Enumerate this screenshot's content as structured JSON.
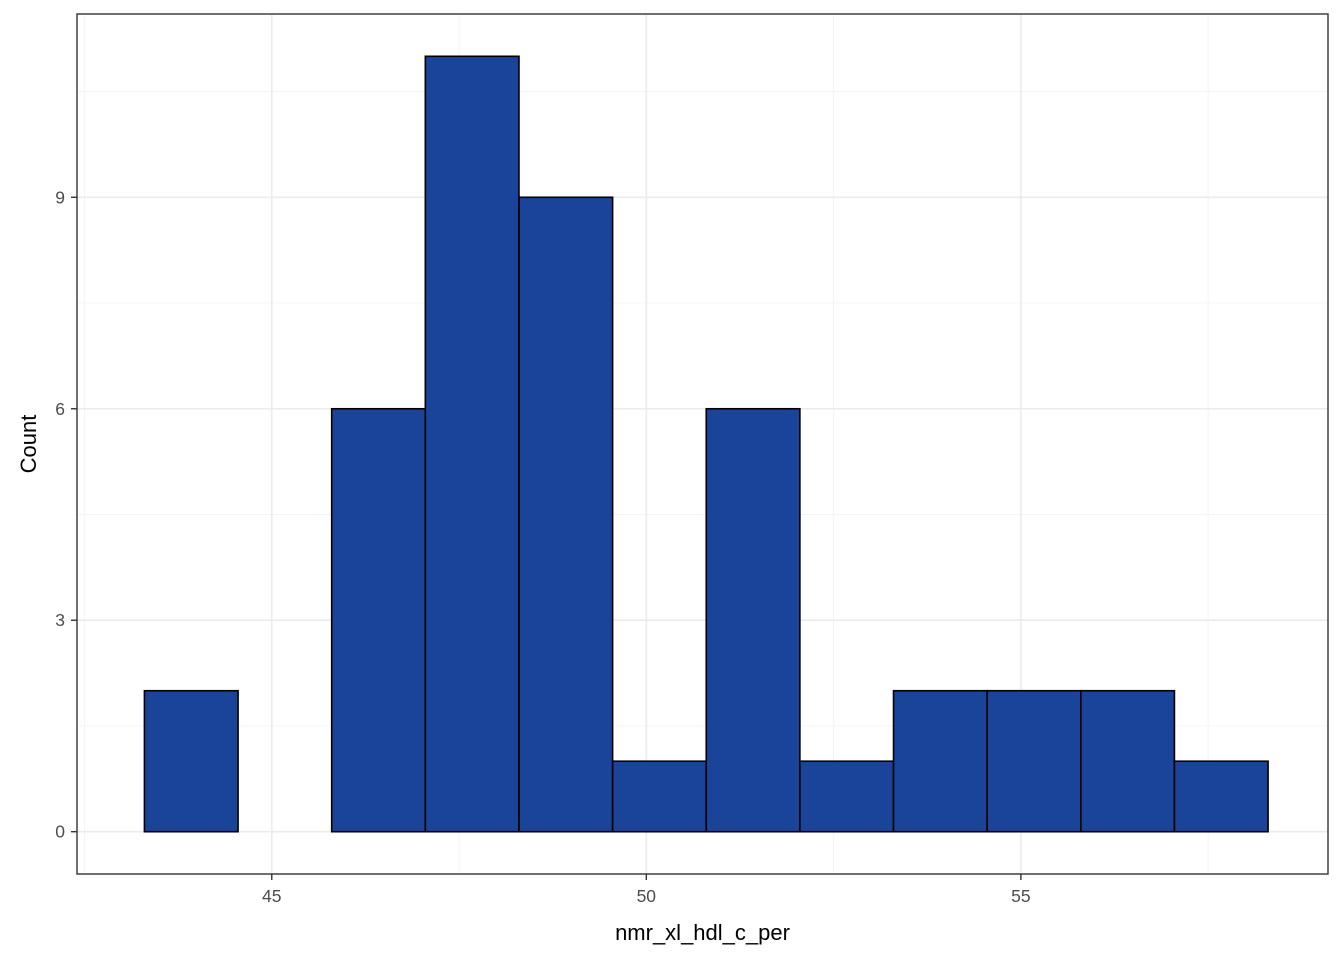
{
  "chart_data": {
    "type": "bar",
    "subtype": "histogram",
    "title": "",
    "xlabel": "nmr_xl_hdl_c_per",
    "ylabel": "Count",
    "xlim": [
      42.4,
      59.1
    ],
    "ylim": [
      -0.6,
      11.6
    ],
    "xticks": [
      45,
      50,
      55
    ],
    "yticks": [
      0,
      3,
      6,
      9
    ],
    "grid": true,
    "legend": "none",
    "bins": [
      {
        "x0": 43.3,
        "x1": 44.55,
        "count": 2
      },
      {
        "x0": 44.55,
        "x1": 45.8,
        "count": 0
      },
      {
        "x0": 45.8,
        "x1": 47.05,
        "count": 6
      },
      {
        "x0": 47.05,
        "x1": 48.3,
        "count": 11
      },
      {
        "x0": 48.3,
        "x1": 49.55,
        "count": 9
      },
      {
        "x0": 49.55,
        "x1": 50.8,
        "count": 1
      },
      {
        "x0": 50.8,
        "x1": 52.05,
        "count": 6
      },
      {
        "x0": 52.05,
        "x1": 53.3,
        "count": 1
      },
      {
        "x0": 53.3,
        "x1": 54.55,
        "count": 2
      },
      {
        "x0": 54.55,
        "x1": 55.8,
        "count": 2
      },
      {
        "x0": 55.8,
        "x1": 57.05,
        "count": 2
      },
      {
        "x0": 57.05,
        "x1": 58.3,
        "count": 1
      }
    ],
    "colors": {
      "bar_fill": "#1a4499",
      "bar_stroke": "#000000",
      "grid_major": "#ebebeb",
      "grid_minor": "#f4f4f4",
      "panel_border": "#333333",
      "tick_text": "#4d4d4d"
    }
  }
}
